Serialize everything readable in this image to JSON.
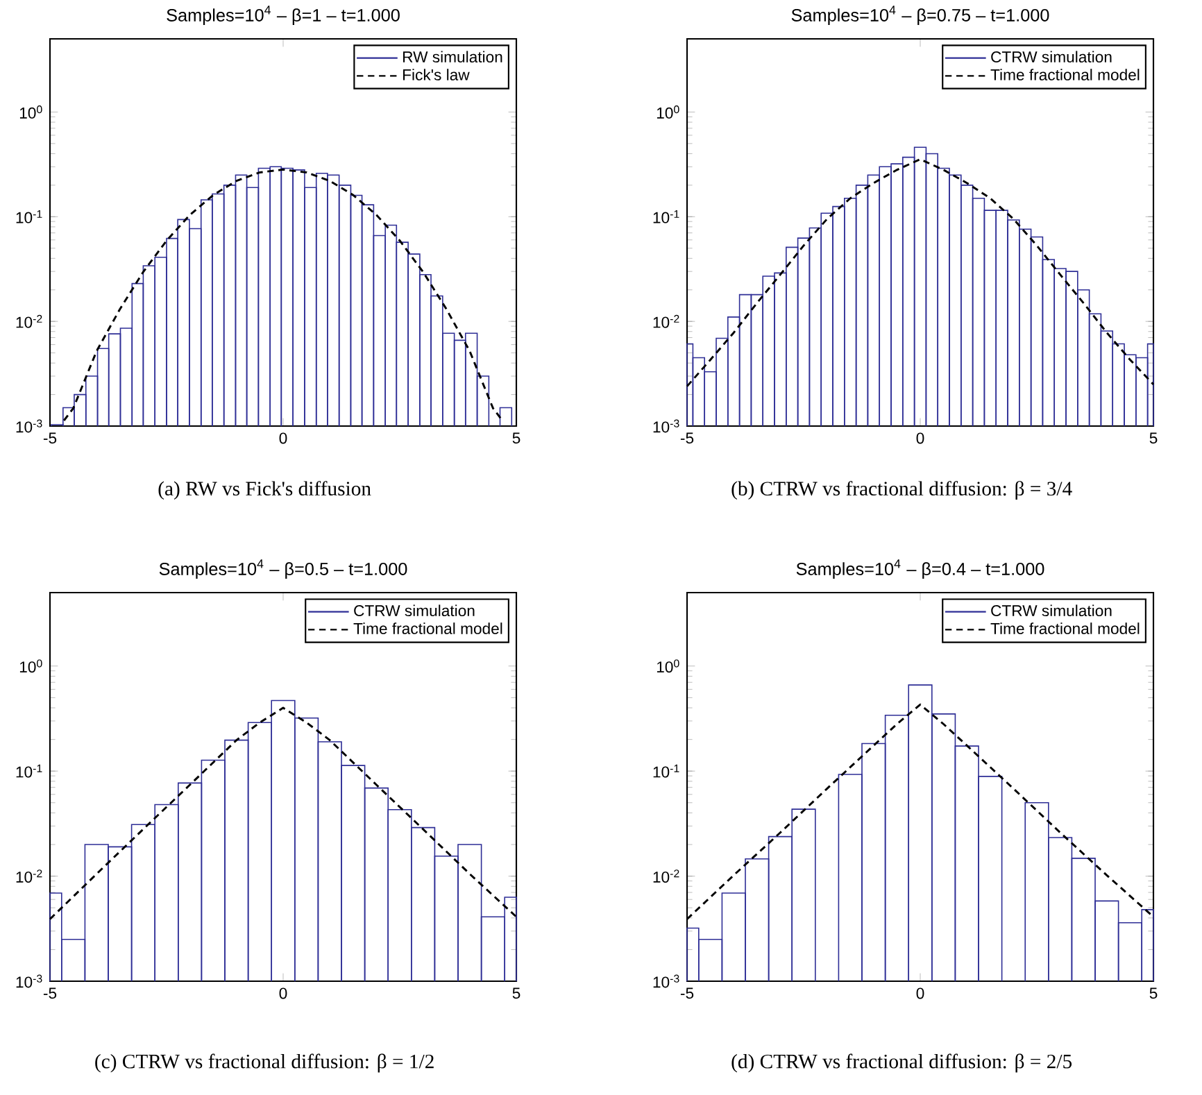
{
  "chart_data": [
    {
      "type": "histogram",
      "title": "Samples=10$^{4}$  –  β=1  –  t=1.000",
      "bins": [
        -4.97,
        -4.72,
        -4.48,
        -4.23,
        -3.98,
        -3.74,
        -3.49,
        -3.24,
        -3.0,
        -2.75,
        -2.5,
        -2.26,
        -2.01,
        -1.76,
        -1.52,
        -1.27,
        -1.02,
        -0.78,
        -0.53,
        -0.28,
        -0.04,
        0.21,
        0.46,
        0.71,
        0.95,
        1.2,
        1.45,
        1.69,
        1.94,
        2.19,
        2.43,
        2.68,
        2.93,
        3.17,
        3.42,
        3.67,
        3.91,
        4.16,
        4.41,
        4.65,
        4.9
      ],
      "series": [
        {
          "name": "RW simulation",
          "color": "#2e2e96",
          "values": [
            0.00103,
            0.0015,
            0.002,
            0.003,
            0.0055,
            0.0076,
            0.0086,
            0.023,
            0.034,
            0.041,
            0.062,
            0.094,
            0.077,
            0.145,
            0.165,
            0.2,
            0.25,
            0.19,
            0.29,
            0.3,
            0.29,
            0.28,
            0.19,
            0.26,
            0.25,
            0.2,
            0.16,
            0.13,
            0.066,
            0.083,
            0.057,
            0.044,
            0.028,
            0.0175,
            0.0077,
            0.0066,
            0.0077,
            0.003,
            null,
            0.0015
          ]
        },
        {
          "name": "Fick's law",
          "type": "line",
          "color": "#000000",
          "line_style": "dashed",
          "x": [
            -4.7,
            -4.5,
            -4,
            -3.5,
            -3,
            -2.5,
            -2,
            -1.5,
            -1,
            -0.5,
            0,
            0.5,
            1,
            1.5,
            2,
            2.5,
            3,
            3.5,
            4,
            4.5,
            4.7
          ],
          "values": [
            0.00113,
            0.00148,
            0.0052,
            0.0131,
            0.0297,
            0.0591,
            0.104,
            0.161,
            0.22,
            0.265,
            0.282,
            0.265,
            0.22,
            0.161,
            0.104,
            0.0591,
            0.0297,
            0.0131,
            0.0052,
            0.00148,
            0.00113
          ]
        }
      ],
      "xlim": [
        -5,
        5
      ],
      "xticks": [
        -5,
        0,
        5
      ],
      "ylim": [
        0.001,
        5
      ],
      "yticks": [
        {
          "value": 0.001,
          "label": "10$^{-3}$"
        },
        {
          "value": 0.01,
          "label": "10$^{-2}$"
        },
        {
          "value": 0.1,
          "label": "10$^{-1}$"
        },
        {
          "value": 1,
          "label": "10$^{0}$"
        }
      ],
      "log": "y",
      "legend": "top right",
      "marker": "none",
      "annotations": [
        "(a)  RW vs Fick's diffusion"
      ]
    },
    {
      "type": "histogram",
      "title": "Samples=10$^{4}$  –  β=0.75  –  t=1.000",
      "bins": [
        -5,
        -4.875,
        -4.625,
        -4.375,
        -4.125,
        -3.875,
        -3.625,
        -3.375,
        -3.125,
        -2.875,
        -2.625,
        -2.375,
        -2.125,
        -1.875,
        -1.625,
        -1.375,
        -1.125,
        -0.875,
        -0.625,
        -0.375,
        -0.125,
        0.125,
        0.375,
        0.625,
        0.875,
        1.125,
        1.375,
        1.625,
        1.875,
        2.125,
        2.375,
        2.625,
        2.875,
        3.125,
        3.375,
        3.625,
        3.875,
        4.125,
        4.375,
        4.625,
        4.875,
        5
      ],
      "series": [
        {
          "name": "CTRW simulation",
          "color": "#2e2e96",
          "values": [
            0.0061,
            0.0045,
            0.0033,
            0.0069,
            0.011,
            0.018,
            0.018,
            0.027,
            0.029,
            0.051,
            0.0625,
            0.078,
            0.108,
            0.125,
            0.15,
            0.2,
            0.25,
            0.3,
            0.32,
            0.37,
            0.46,
            0.4,
            0.29,
            0.25,
            0.2,
            0.15,
            0.115,
            0.115,
            0.093,
            0.076,
            0.064,
            0.039,
            0.032,
            0.03,
            0.02,
            0.0118,
            0.0081,
            0.0061,
            0.0048,
            0.0045,
            0.0061
          ]
        },
        {
          "name": "Time fractional model",
          "type": "line",
          "color": "#000000",
          "line_style": "dashed",
          "x": [
            -5,
            -4.5,
            -4,
            -3.5,
            -3,
            -2.5,
            -2,
            -1.5,
            -1,
            -0.5,
            0,
            0.5,
            1,
            1.5,
            2,
            2.5,
            3,
            3.5,
            4,
            4.5,
            5
          ],
          "values": [
            0.0024,
            0.0043,
            0.0078,
            0.015,
            0.028,
            0.053,
            0.095,
            0.15,
            0.21,
            0.28,
            0.354,
            0.28,
            0.21,
            0.15,
            0.095,
            0.053,
            0.028,
            0.015,
            0.0078,
            0.0043,
            0.0025
          ]
        }
      ],
      "xlim": [
        -5,
        5
      ],
      "xticks": [
        -5,
        0,
        5
      ],
      "ylim": [
        0.001,
        5
      ],
      "yticks": [
        {
          "value": 0.001,
          "label": "10$^{-3}$"
        },
        {
          "value": 0.01,
          "label": "10$^{-2}$"
        },
        {
          "value": 0.1,
          "label": "10$^{-1}$"
        },
        {
          "value": 1,
          "label": "10$^{0}$"
        }
      ],
      "log": "y",
      "legend": "top right",
      "marker": "none",
      "annotations": [
        "(b)  CTRW vs fractional diffusion:  β = 3/4"
      ]
    },
    {
      "type": "histogram",
      "title": "Samples=10$^{4}$  –  β=0.5  –  t=1.000",
      "bins": [
        -5,
        -4.75,
        -4.25,
        -3.75,
        -3.25,
        -2.75,
        -2.25,
        -1.75,
        -1.25,
        -0.75,
        -0.25,
        0.25,
        0.75,
        1.25,
        1.75,
        2.25,
        2.75,
        3.25,
        3.75,
        4.25,
        4.75,
        5
      ],
      "series": [
        {
          "name": "CTRW simulation",
          "color": "#2e2e96",
          "values": [
            0.0069,
            0.0025,
            0.02,
            0.019,
            0.031,
            0.048,
            0.077,
            0.127,
            0.197,
            0.29,
            0.47,
            0.32,
            0.19,
            0.113,
            0.069,
            0.043,
            0.029,
            0.0155,
            0.02,
            0.0041,
            0.0063
          ]
        },
        {
          "name": "Time fractional model",
          "type": "line",
          "color": "#000000",
          "line_style": "dashed",
          "x": [
            -5,
            -4,
            -3,
            -2,
            -1,
            -0.5,
            0,
            0.5,
            1,
            2,
            3,
            4,
            5
          ],
          "values": [
            0.0039,
            0.0105,
            0.028,
            0.074,
            0.197,
            0.29,
            0.4,
            0.29,
            0.197,
            0.074,
            0.028,
            0.0105,
            0.0041
          ]
        }
      ],
      "xlim": [
        -5,
        5
      ],
      "xticks": [
        -5,
        0,
        5
      ],
      "ylim": [
        0.001,
        5
      ],
      "yticks": [
        {
          "value": 0.001,
          "label": "10$^{-3}$"
        },
        {
          "value": 0.01,
          "label": "10$^{-2}$"
        },
        {
          "value": 0.1,
          "label": "10$^{-1}$"
        },
        {
          "value": 1,
          "label": "10$^{0}$"
        }
      ],
      "log": "y",
      "legend": "top right",
      "marker": "none",
      "annotations": [
        "(c)  CTRW vs fractional diffusion:  β = 1/2"
      ]
    },
    {
      "type": "histogram",
      "title": "Samples=10$^{4}$  –  β=0.4  –  t=1.000",
      "bins": [
        -5,
        -4.75,
        -4.25,
        -3.75,
        -3.25,
        -2.75,
        -2.25,
        -1.75,
        -1.25,
        -0.75,
        -0.25,
        0.25,
        0.75,
        1.25,
        1.75,
        2.25,
        2.75,
        3.25,
        3.75,
        4.25,
        4.75,
        5
      ],
      "series": [
        {
          "name": "CTRW simulation",
          "color": "#2e2e96",
          "values": [
            0.0032,
            0.0025,
            0.0069,
            0.0146,
            0.0238,
            0.0434,
            null,
            0.093,
            0.183,
            0.34,
            0.66,
            0.35,
            0.173,
            0.089,
            null,
            0.05,
            0.0233,
            0.0148,
            0.0058,
            0.0036,
            0.0048
          ]
        },
        {
          "name": "Time fractional model",
          "type": "line",
          "color": "#000000",
          "line_style": "dashed",
          "x": [
            -5,
            -4,
            -3,
            -2,
            -1,
            -0.5,
            0,
            0.5,
            1,
            2,
            3,
            4,
            5
          ],
          "values": [
            0.0039,
            0.0102,
            0.026,
            0.068,
            0.175,
            0.28,
            0.43,
            0.28,
            0.175,
            0.068,
            0.026,
            0.0102,
            0.0041
          ]
        }
      ],
      "xlim": [
        -5,
        5
      ],
      "xticks": [
        -5,
        0,
        5
      ],
      "ylim": [
        0.001,
        5
      ],
      "yticks": [
        {
          "value": 0.001,
          "label": "10$^{-3}$"
        },
        {
          "value": 0.01,
          "label": "10$^{-2}$"
        },
        {
          "value": 0.1,
          "label": "10$^{-1}$"
        },
        {
          "value": 1,
          "label": "10$^{0}$"
        }
      ],
      "log": "y",
      "legend": "top right",
      "marker": "none",
      "annotations": [
        "(d)  CTRW vs fractional diffusion:  β = 2/5"
      ]
    }
  ]
}
